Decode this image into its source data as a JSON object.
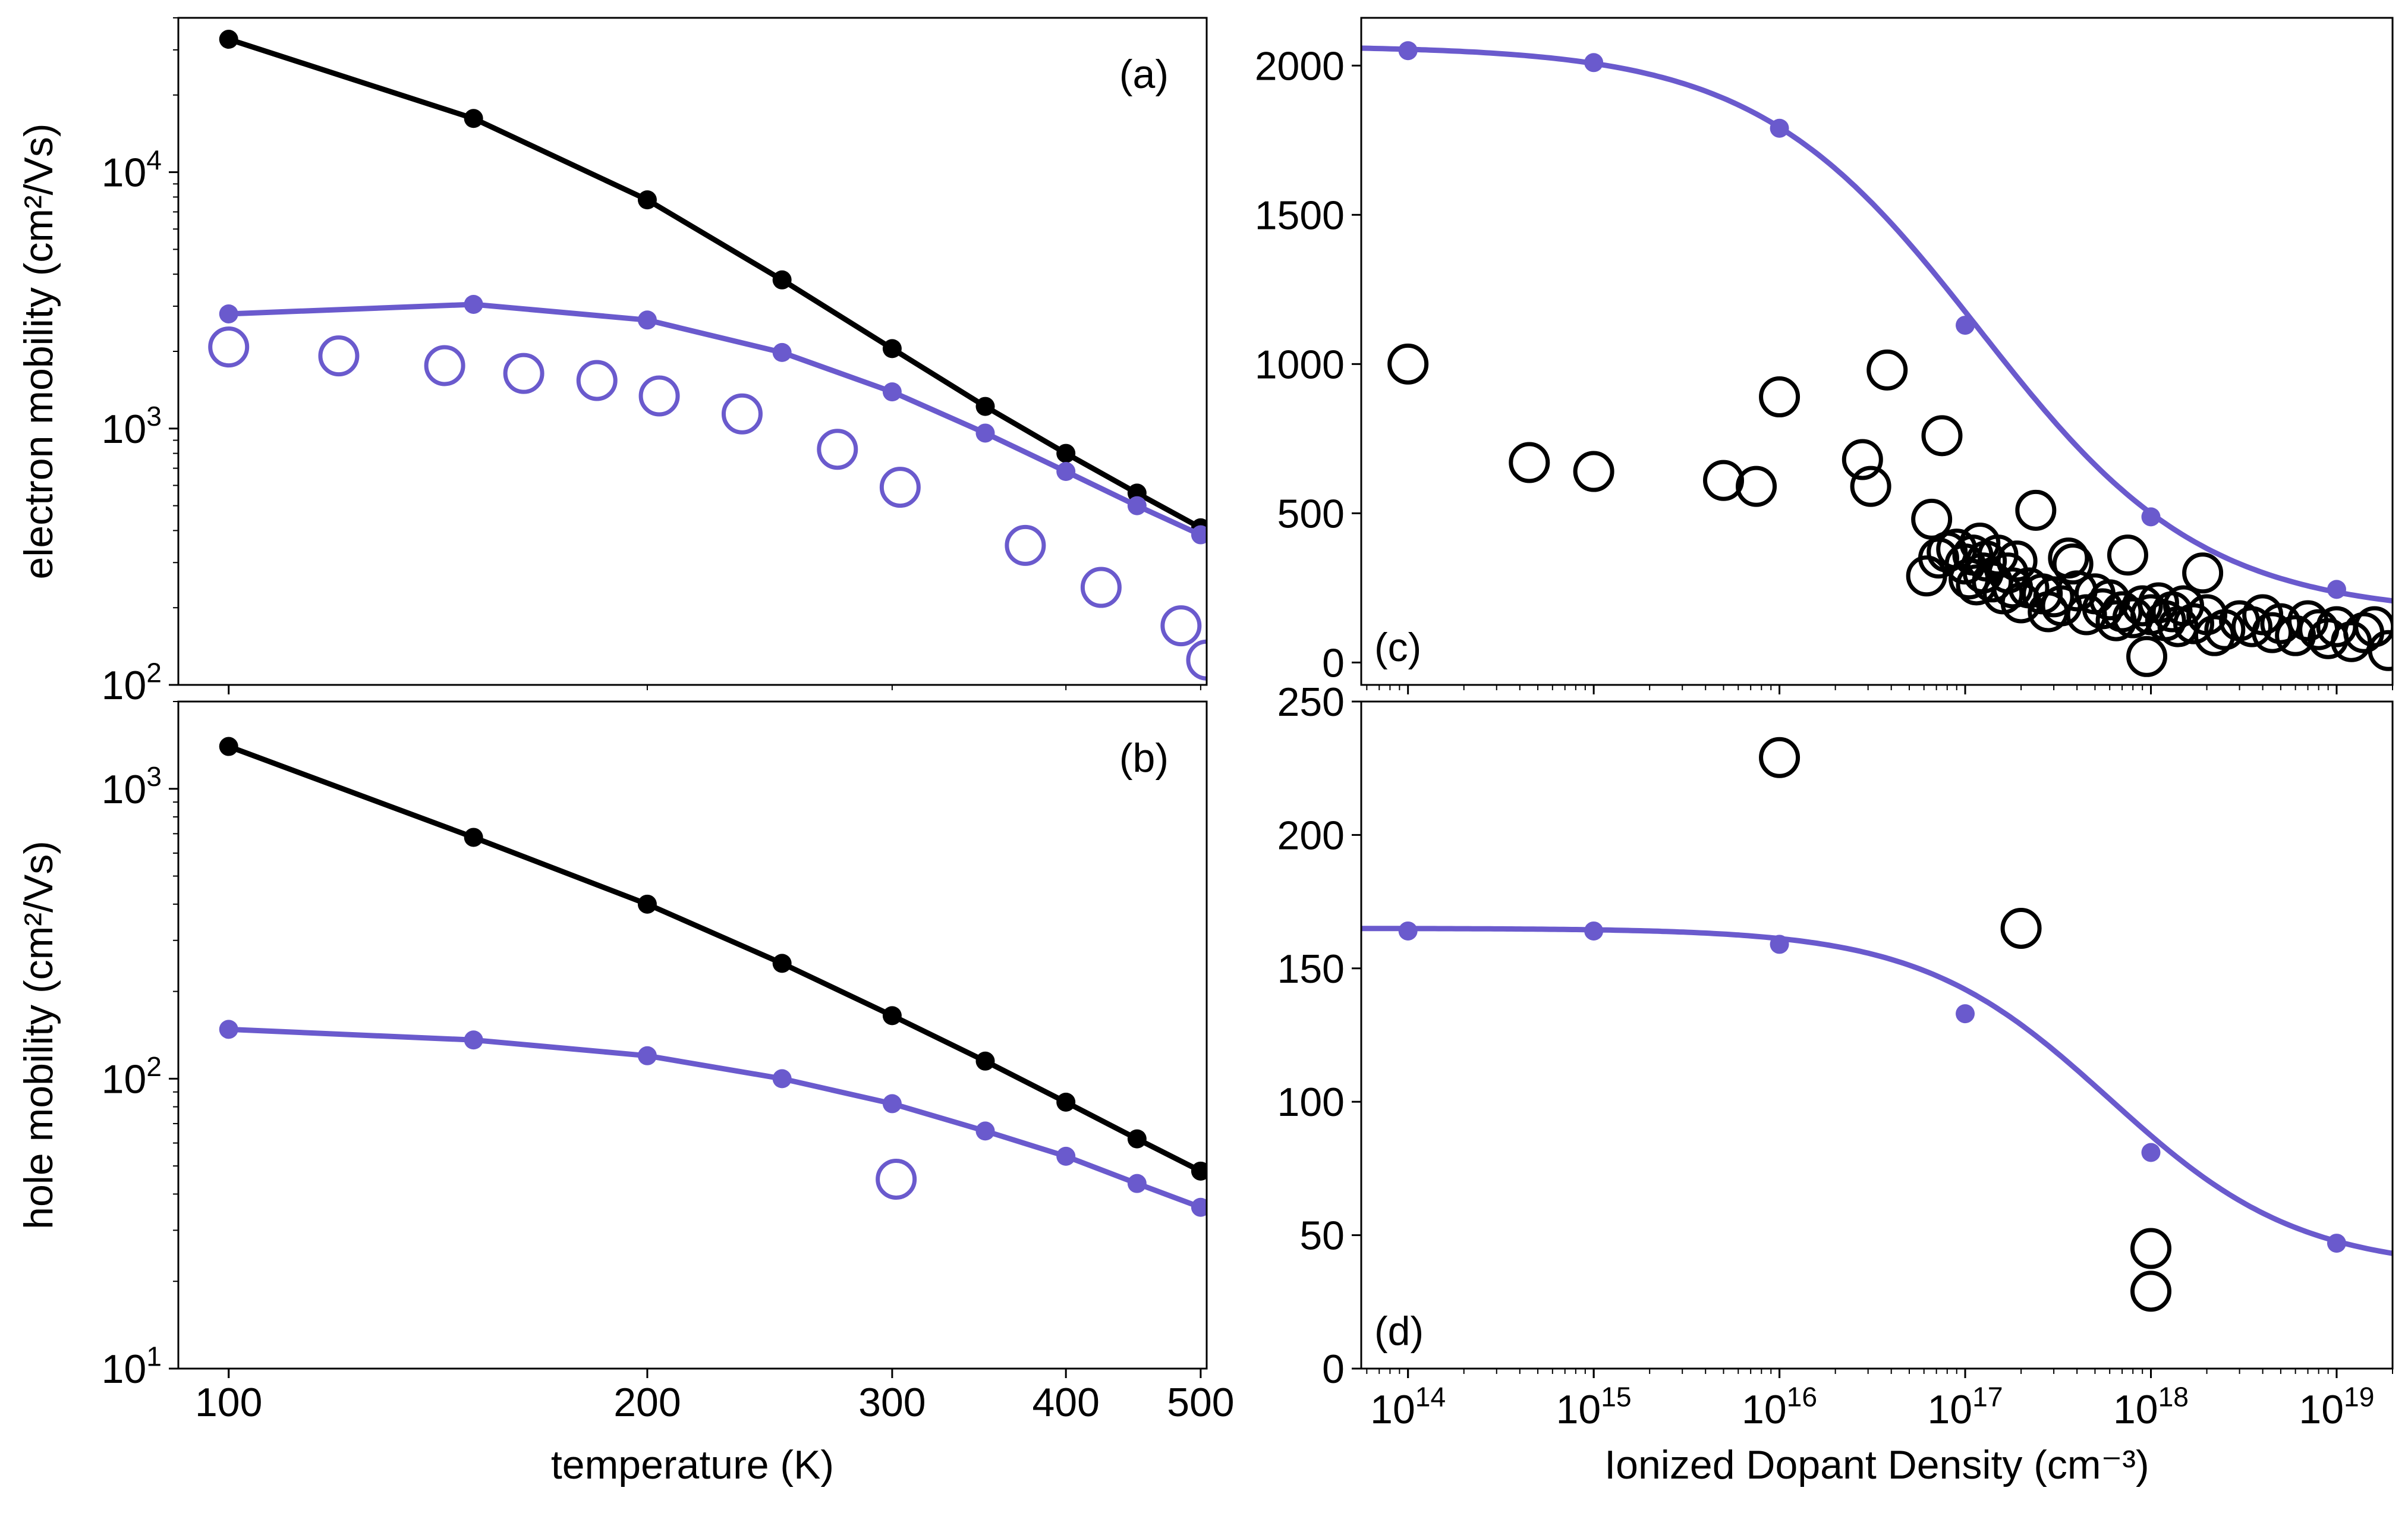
{
  "colors": {
    "black_series": "#000000",
    "purple_series": "#6a5acd",
    "axes": "#000000",
    "background": "#ffffff"
  },
  "chart_data": [
    {
      "panel": "a",
      "panel_label": "(a)",
      "type": "line",
      "ylabel": "electron mobility (cm²/Vs)",
      "xlabel": "",
      "xscale": "log",
      "yscale": "log",
      "xlim": [
        92,
        505
      ],
      "ylim": [
        100,
        40000
      ],
      "xticks": [],
      "yticks": [
        {
          "value": 100,
          "base": "10",
          "exp": "2"
        },
        {
          "value": 1000,
          "base": "10",
          "exp": "3"
        },
        {
          "value": 10000,
          "base": "10",
          "exp": "4"
        }
      ],
      "series": [
        {
          "color": "#000000",
          "style": "line+dots",
          "x": [
            100,
            150,
            200,
            250,
            300,
            350,
            400,
            450,
            500
          ],
          "y": [
            33000,
            16200,
            7800,
            3800,
            2050,
            1220,
            800,
            560,
            410
          ]
        },
        {
          "color": "#6a5acd",
          "style": "line+dots",
          "x": [
            100,
            150,
            200,
            250,
            300,
            350,
            400,
            450,
            500
          ],
          "y": [
            2800,
            3050,
            2650,
            1980,
            1390,
            960,
            680,
            500,
            385
          ]
        },
        {
          "color": "#6a5acd",
          "style": "open-circles",
          "x": [
            100,
            120,
            143,
            163,
            184,
            204,
            234,
            274,
            304,
            374,
            424,
            484,
            505
          ],
          "y": [
            2080,
            1920,
            1760,
            1640,
            1540,
            1340,
            1140,
            830,
            590,
            350,
            240,
            170,
            125
          ]
        }
      ]
    },
    {
      "panel": "b",
      "panel_label": "(b)",
      "type": "line",
      "ylabel": "hole mobility (cm²/Vs)",
      "xlabel": "temperature (K)",
      "xscale": "log",
      "yscale": "log",
      "xlim": [
        92,
        505
      ],
      "ylim": [
        10,
        2000
      ],
      "xticks": [
        {
          "value": 100,
          "label": "100"
        },
        {
          "value": 200,
          "label": "200"
        },
        {
          "value": 300,
          "label": "300"
        },
        {
          "value": 400,
          "label": "400"
        },
        {
          "value": 500,
          "label": "500"
        }
      ],
      "yticks": [
        {
          "value": 10,
          "base": "10",
          "exp": "1"
        },
        {
          "value": 100,
          "base": "10",
          "exp": "2"
        },
        {
          "value": 1000,
          "base": "10",
          "exp": "3"
        }
      ],
      "series": [
        {
          "color": "#000000",
          "style": "line+dots",
          "x": [
            100,
            150,
            200,
            250,
            300,
            350,
            400,
            450,
            500
          ],
          "y": [
            1400,
            680,
            400,
            250,
            165,
            115,
            83,
            62,
            48
          ]
        },
        {
          "color": "#6a5acd",
          "style": "line+dots",
          "x": [
            100,
            150,
            200,
            250,
            300,
            350,
            400,
            450,
            500
          ],
          "y": [
            148,
            136,
            120,
            100,
            82,
            66,
            54,
            43.5,
            36
          ]
        },
        {
          "color": "#6a5acd",
          "style": "open-circles",
          "x": [
            302
          ],
          "y": [
            45
          ]
        }
      ]
    },
    {
      "panel": "c",
      "panel_label": "(c)",
      "type": "line",
      "ylabel": "",
      "xlabel": "",
      "xscale": "log",
      "yscale": "linear",
      "xlim": [
        56000000000000.0,
        2e+19
      ],
      "ylim": [
        -75,
        2160
      ],
      "xticks": [],
      "yticks": [
        {
          "value": 0,
          "label": "0"
        },
        {
          "value": 500,
          "label": "500"
        },
        {
          "value": 1000,
          "label": "1000"
        },
        {
          "value": 1500,
          "label": "1500"
        },
        {
          "value": 2000,
          "label": "2000"
        }
      ],
      "series": [
        {
          "color": "#6a5acd",
          "style": "curve",
          "model": {
            "mu_min": 160,
            "mu_max": 2066,
            "n_ref": 1.2e+17,
            "alpha": 0.72
          }
        },
        {
          "color": "#6a5acd",
          "style": "dots",
          "x": [
            100000000000000.0,
            1000000000000000.0,
            1e+16,
            1e+17,
            1e+18,
            1e+19
          ],
          "y": [
            2050,
            2010,
            1790,
            1130,
            488,
            245
          ]
        },
        {
          "color": "#000000",
          "style": "open-circles",
          "x": [
            100000000000000.0,
            450000000000000.0,
            1000000000000000.0,
            5000000000000000.0,
            7500000000000000.0,
            1e+16,
            2.8e+16,
            3.1e+16,
            3.8e+16,
            6.2e+16,
            6.6e+16,
            7.2e+16,
            7.5e+16,
            8e+16,
            9e+16,
            1e+17,
            1.05e+17,
            1.1e+17,
            1.15e+17,
            1.2e+17,
            1.25e+17,
            1.3e+17,
            1.4e+17,
            1.5e+17,
            1.6e+17,
            1.7e+17,
            1.8e+17,
            1.9e+17,
            2e+17,
            2.2e+17,
            2.4e+17,
            2.6e+17,
            2.8e+17,
            3e+17,
            3.3e+17,
            3.6e+17,
            3.8e+17,
            4e+17,
            4.5e+17,
            5e+17,
            5.5e+17,
            6e+17,
            6.5e+17,
            7e+17,
            7.5e+17,
            8e+17,
            9e+17,
            9.5e+17,
            1e+18,
            1.1e+18,
            1.2e+18,
            1.3e+18,
            1.4e+18,
            1.5e+18,
            1.7e+18,
            1.9e+18,
            2e+18,
            2.2e+18,
            2.5e+18,
            3e+18,
            3.5e+18,
            4e+18,
            4.5e+18,
            5e+18,
            6e+18,
            7e+18,
            8e+18,
            9e+18,
            1e+19,
            1.2e+19,
            1.4e+19,
            1.6e+19,
            1.9e+19
          ],
          "y": [
            1000,
            670,
            640,
            610,
            590,
            890,
            680,
            590,
            980,
            290,
            480,
            350,
            760,
            370,
            380,
            330,
            280,
            360,
            260,
            400,
            300,
            340,
            270,
            360,
            230,
            300,
            250,
            340,
            200,
            250,
            510,
            230,
            170,
            220,
            190,
            350,
            330,
            240,
            160,
            230,
            180,
            210,
            140,
            170,
            360,
            150,
            190,
            20,
            160,
            200,
            140,
            170,
            120,
            190,
            130,
            300,
            160,
            90,
            110,
            140,
            120,
            160,
            100,
            130,
            90,
            140,
            110,
            80,
            120,
            70,
            100,
            120,
            40
          ]
        }
      ]
    },
    {
      "panel": "d",
      "panel_label": "(d)",
      "type": "line",
      "ylabel": "",
      "xlabel": "Ionized Dopant Density (cm⁻³)",
      "xscale": "log",
      "yscale": "linear",
      "xlim": [
        56000000000000.0,
        2e+19
      ],
      "ylim": [
        0,
        250
      ],
      "xticks": [
        {
          "value": 100000000000000.0,
          "base": "10",
          "exp": "14"
        },
        {
          "value": 1000000000000000.0,
          "base": "10",
          "exp": "15"
        },
        {
          "value": 1e+16,
          "base": "10",
          "exp": "16"
        },
        {
          "value": 1e+17,
          "base": "10",
          "exp": "17"
        },
        {
          "value": 1e+18,
          "base": "10",
          "exp": "18"
        },
        {
          "value": 1e+19,
          "base": "10",
          "exp": "19"
        }
      ],
      "yticks": [
        {
          "value": 0,
          "label": "0"
        },
        {
          "value": 50,
          "label": "50"
        },
        {
          "value": 100,
          "label": "100"
        },
        {
          "value": 150,
          "label": "150"
        },
        {
          "value": 200,
          "label": "200"
        },
        {
          "value": 250,
          "label": "250"
        }
      ],
      "series": [
        {
          "color": "#6a5acd",
          "style": "curve",
          "model": {
            "mu_min": 37,
            "mu_max": 165,
            "n_ref": 6e+17,
            "alpha": 0.85
          }
        },
        {
          "color": "#6a5acd",
          "style": "dots",
          "x": [
            100000000000000.0,
            1000000000000000.0,
            1e+16,
            1e+17,
            1e+18,
            1e+19
          ],
          "y": [
            164,
            164,
            159,
            133,
            81,
            47
          ]
        },
        {
          "color": "#000000",
          "style": "open-circles",
          "x": [
            1e+16,
            2e+17,
            1e+18,
            1e+18
          ],
          "y": [
            229,
            165,
            45,
            29
          ]
        }
      ]
    }
  ]
}
